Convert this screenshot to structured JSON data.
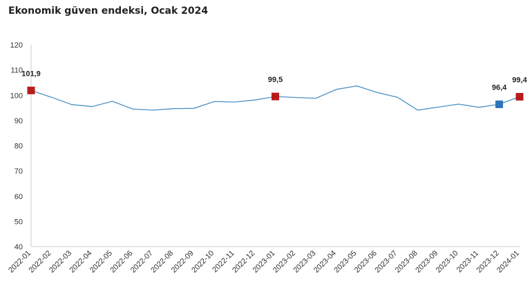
{
  "chart_data": {
    "type": "line",
    "title": "Ekonomik güven endeksi, Ocak 2024",
    "xlabel": "",
    "ylabel": "",
    "ylim": [
      40,
      120
    ],
    "yticks": [
      40,
      50,
      60,
      70,
      80,
      90,
      100,
      110,
      120
    ],
    "grid": false,
    "legend": "none",
    "categories": [
      "2022-01",
      "2022-02",
      "2022-03",
      "2022-04",
      "2022-05",
      "2022-06",
      "2022-07",
      "2022-08",
      "2022-09",
      "2022-10",
      "2022-11",
      "2022-12",
      "2023-01",
      "2023-02",
      "2023-03",
      "2023-04",
      "2023-05",
      "2023-06",
      "2023-07",
      "2023-08",
      "2023-09",
      "2023-10",
      "2023-11",
      "2023-12",
      "2024-01"
    ],
    "series": [
      {
        "name": "",
        "color": "#4a90c4",
        "values": [
          101.9,
          99.2,
          96.3,
          95.5,
          97.6,
          94.5,
          94.1,
          94.7,
          94.8,
          97.5,
          97.3,
          98.1,
          99.5,
          99.1,
          98.8,
          102.3,
          103.7,
          101.1,
          99.2,
          94.1,
          95.3,
          96.5,
          95.2,
          96.4,
          99.4
        ]
      }
    ],
    "highlights": [
      {
        "index": 0,
        "label": "101,9",
        "color": "#b71c1c"
      },
      {
        "index": 12,
        "label": "99,5",
        "color": "#b71c1c"
      },
      {
        "index": 23,
        "label": "96,4",
        "color": "#2e75b6"
      },
      {
        "index": 24,
        "label": "99,4",
        "color": "#b71c1c"
      }
    ]
  }
}
